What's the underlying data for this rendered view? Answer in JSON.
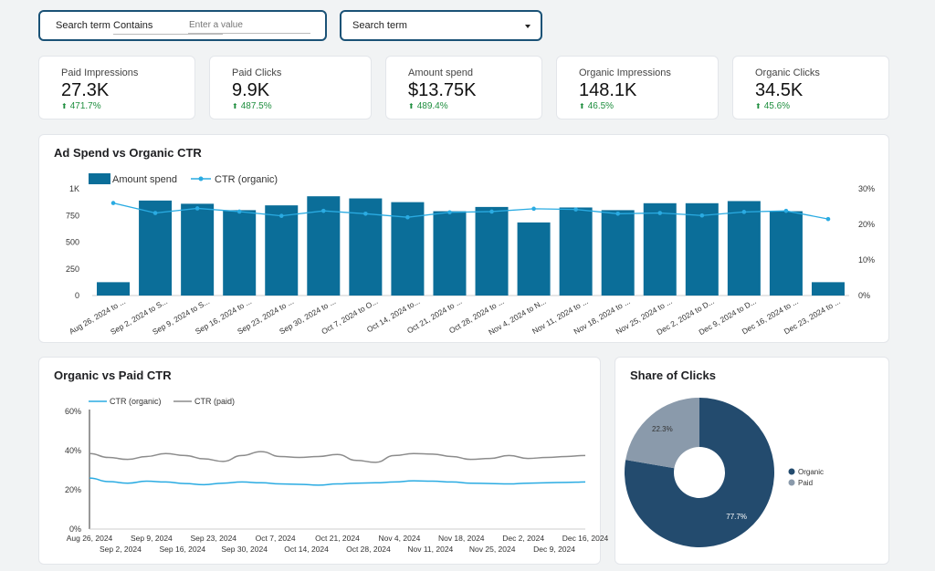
{
  "filters": {
    "filter1": {
      "label": "Search term",
      "operator": "Contains",
      "placeholder": "Enter a value"
    },
    "filter2": {
      "label": "Search term"
    }
  },
  "kpis": [
    {
      "label": "Paid Impressions",
      "value": "27.3K",
      "delta": "471.7%"
    },
    {
      "label": "Paid Clicks",
      "value": "9.9K",
      "delta": "487.5%"
    },
    {
      "label": "Amount spend",
      "value": "$13.75K",
      "delta": "489.4%"
    },
    {
      "label": "Organic Impressions",
      "value": "148.1K",
      "delta": "46.5%"
    },
    {
      "label": "Organic Clicks",
      "value": "34.5K",
      "delta": "45.6%"
    }
  ],
  "colors": {
    "bar": "#0b6e99",
    "line_organic": "#2aabe2",
    "line_paid": "#8c8c8c",
    "donut_organic": "#234b6e",
    "donut_paid": "#8a9aab",
    "delta": "#1e8e3e"
  },
  "chart_data": [
    {
      "type": "bar",
      "title": "Ad Spend vs Organic CTR",
      "categories": [
        "Aug 26, 2024 to ...",
        "Sep 2, 2024 to S...",
        "Sep 9, 2024 to S...",
        "Sep 16, 2024 to ...",
        "Sep 23, 2024 to ...",
        "Sep 30, 2024 to ...",
        "Oct 7, 2024 to O...",
        "Oct 14, 2024 to...",
        "Oct 21, 2024 to ...",
        "Oct 28, 2024 to ...",
        "Nov 4, 2024 to N...",
        "Nov 11, 2024 to ...",
        "Nov 18, 2024 to ...",
        "Nov 25, 2024 to ...",
        "Dec 2, 2024 to D...",
        "Dec 9, 2024 to D...",
        "Dec 16, 2024 to ...",
        "Dec 23, 2024 to ..."
      ],
      "series": [
        {
          "name": "Amount spend",
          "kind": "bar",
          "axis": "left",
          "values": [
            125,
            890,
            860,
            800,
            845,
            930,
            910,
            875,
            790,
            830,
            685,
            825,
            800,
            865,
            865,
            885,
            790,
            125
          ]
        },
        {
          "name": "CTR (organic)",
          "kind": "line",
          "axis": "right",
          "values": [
            26.0,
            23.2,
            24.5,
            23.6,
            22.4,
            23.8,
            23.0,
            22.0,
            23.4,
            23.6,
            24.4,
            24.2,
            23.0,
            23.2,
            22.5,
            23.5,
            23.8,
            21.5
          ]
        }
      ],
      "y_left": {
        "ticks": [
          "0",
          "250",
          "500",
          "750",
          "1K"
        ],
        "ylim": [
          0,
          1000
        ]
      },
      "y_right": {
        "ticks": [
          "0%",
          "10%",
          "20%",
          "30%"
        ],
        "ylim": [
          0,
          30
        ]
      },
      "legend": "top-left"
    },
    {
      "type": "line",
      "title": "Organic vs Paid CTR",
      "x_ticks_top": [
        "Aug 26, 2024",
        "Sep 9, 2024",
        "Sep 23, 2024",
        "Oct 7, 2024",
        "Oct 21, 2024",
        "Nov 4, 2024",
        "Nov 18, 2024",
        "Dec 2, 2024",
        "Dec 16, 2024"
      ],
      "x_ticks_bottom": [
        "Sep 2, 2024",
        "Sep 16, 2024",
        "Sep 30, 2024",
        "Oct 14, 2024",
        "Oct 28, 2024",
        "Nov 11, 2024",
        "Nov 25, 2024",
        "Dec 9, 2024"
      ],
      "series": [
        {
          "name": "CTR (organic)",
          "values": [
            26.0,
            24.2,
            23.4,
            24.4,
            24.0,
            23.2,
            22.6,
            23.4,
            24.0,
            23.6,
            23.0,
            22.8,
            22.4,
            23.0,
            23.4,
            23.6,
            24.0,
            24.6,
            24.4,
            24.0,
            23.4,
            23.2,
            23.0,
            23.4,
            23.6,
            23.8,
            24.0
          ]
        },
        {
          "name": "CTR (paid)",
          "values": [
            38.5,
            36.5,
            35.5,
            37.0,
            38.5,
            37.5,
            35.8,
            34.5,
            37.5,
            39.5,
            37.0,
            36.5,
            37.0,
            38.0,
            35.0,
            34.0,
            37.5,
            38.5,
            38.2,
            37.0,
            35.5,
            36.0,
            37.5,
            36.0,
            36.5,
            37.0,
            37.5
          ]
        }
      ],
      "y_ticks": [
        "0%",
        "20%",
        "40%",
        "60%"
      ],
      "ylim": [
        0,
        60
      ],
      "legend": "top-left"
    },
    {
      "type": "pie",
      "title": "Share of Clicks",
      "slices": [
        {
          "label": "Organic",
          "value": 77.7,
          "display": "77.7%"
        },
        {
          "label": "Paid",
          "value": 22.3,
          "display": "22.3%"
        }
      ],
      "legend": "right"
    }
  ]
}
